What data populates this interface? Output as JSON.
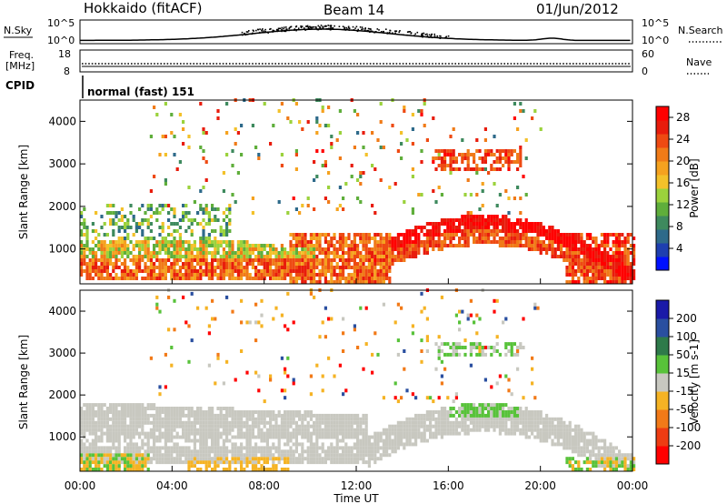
{
  "header": {
    "station": "Hokkaido (fitACF)",
    "beam": "Beam 14",
    "date": "01/Jun/2012"
  },
  "top_panels": {
    "nsky_label": "N.Sky",
    "nsearch_label": "N.Search",
    "freq_label_1": "Freq.",
    "freq_label_2": "[MHz]",
    "nave_label": "Nave",
    "cpid_label": "CPID",
    "cpid_value": "normal (fast) 151",
    "noise_ticks": [
      "10^5",
      "10^0"
    ],
    "freq_ticks": [
      "18",
      "8"
    ],
    "nave_ticks": [
      "60",
      "0"
    ]
  },
  "chart_data": [
    {
      "type": "heatmap",
      "title": "",
      "xlabel": "",
      "ylabel": "Slant Range [km]",
      "x_range_hours": [
        0,
        24
      ],
      "ylim": [
        180,
        4500
      ],
      "y_ticks": [
        1000,
        2000,
        3000,
        4000
      ],
      "colorbar": {
        "label": "Power [dB]",
        "ticks": [
          4,
          8,
          12,
          16,
          20,
          24,
          28
        ],
        "range": [
          0,
          30
        ],
        "colors": [
          "#0010ff",
          "#1e3fb0",
          "#2e6a8a",
          "#3e8a5e",
          "#5fae3b",
          "#9bd23c",
          "#f3c12a",
          "#f5a21f",
          "#f07b18",
          "#ee4a12",
          "#e81c0c",
          "#ff0000"
        ]
      },
      "dominant_features": [
        {
          "hours": [
            0,
            10
          ],
          "range_km": [
            300,
            1100
          ],
          "power_db": 22
        },
        {
          "hours": [
            13.5,
            24
          ],
          "range_km": [
            600,
            1800
          ],
          "power_db": 28
        },
        {
          "hours": [
            15.5,
            19
          ],
          "range_km": [
            2800,
            3300
          ],
          "power_db": 24
        }
      ]
    },
    {
      "type": "heatmap",
      "title": "",
      "xlabel": "Time UT",
      "ylabel": "Slant Range [km]",
      "x_range_hours": [
        0,
        24
      ],
      "ylim": [
        180,
        4500
      ],
      "y_ticks": [
        1000,
        2000,
        3000,
        4000
      ],
      "x_ticks": [
        "00:00",
        "04:00",
        "08:00",
        "12:00",
        "16:00",
        "20:00",
        "00:00"
      ],
      "colorbar": {
        "label": "Velocity [m s-1]",
        "ticks": [
          200,
          100,
          50,
          15,
          -15,
          -50,
          -100,
          -200
        ],
        "colors": [
          "#1a1aa8",
          "#2a4fa0",
          "#2e7a4a",
          "#58c23a",
          "#c8c8c0",
          "#f5b324",
          "#f27a18",
          "#ee3c12",
          "#ff0000"
        ]
      },
      "dominant_features": [
        {
          "hours": [
            0,
            24
          ],
          "range_km": [
            400,
            1800
          ],
          "velocity_ms": 0
        },
        {
          "hours": [
            0,
            3
          ],
          "range_km": [
            250,
            500
          ],
          "velocity_ms": -60
        },
        {
          "hours": [
            16,
            19
          ],
          "range_km": [
            1500,
            1800
          ],
          "velocity_ms": 40
        }
      ]
    }
  ]
}
